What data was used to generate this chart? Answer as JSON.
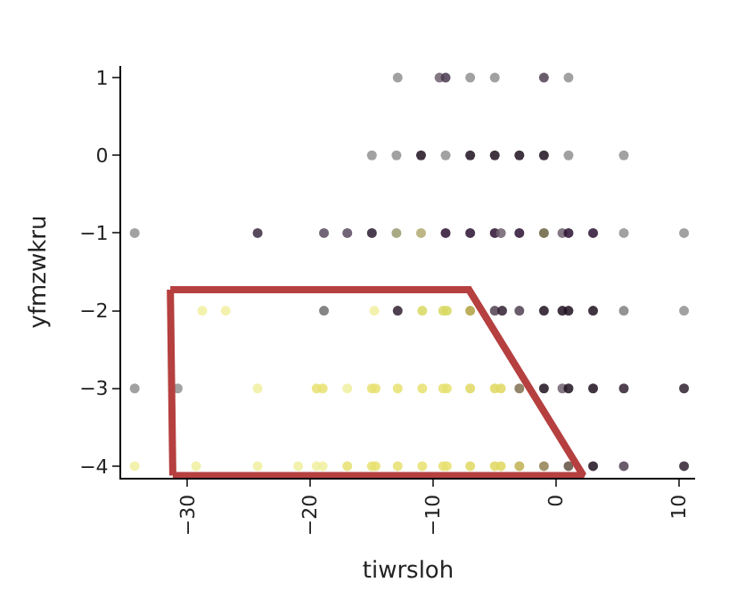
{
  "chart_data": {
    "type": "scatter",
    "xlabel": "tiwrsloh",
    "ylabel": "yfmzwkru",
    "xlim": [
      -35.4,
      11.3
    ],
    "ylim": [
      -4.15,
      1.15
    ],
    "xticks": [
      -30,
      -20,
      -10,
      0,
      10
    ],
    "yticks": [
      -4,
      -3,
      -2,
      -1,
      0,
      1
    ],
    "marker": "circle",
    "series": [
      {
        "x": [
          -12.9,
          -9.5,
          -9,
          -7,
          -5,
          -1,
          1,
          -15,
          -13,
          -11,
          -9,
          -7,
          -5,
          -3,
          -1,
          1,
          5.5,
          -34.3,
          -24.3,
          -18.9,
          -17,
          -15,
          -13,
          -11,
          -9,
          -7,
          -5,
          -4.5,
          -3,
          -1,
          0.5,
          1,
          3,
          5.5,
          10.4,
          -28.8,
          -26.9,
          -18.9,
          -14.8,
          -12.9,
          -10.9,
          -9.2,
          -8.9,
          -7,
          -5,
          -4.4,
          -3,
          -1,
          0.5,
          1,
          3,
          5.5,
          10.4,
          -34.3,
          -30.8,
          -24.3,
          -19.5,
          -19,
          -17,
          -15,
          -14.7,
          -12.9,
          -10.9,
          -9.2,
          -8.9,
          -7,
          -5,
          -4.5,
          -3,
          -1,
          0.5,
          1,
          3,
          5.5,
          10.4,
          -34.3,
          -29.3,
          -24.3,
          -21,
          -19.5,
          -19,
          -17,
          -15,
          -14.7,
          -12.9,
          -10.9,
          -9.2,
          -8.9,
          -7,
          -5,
          -4.5,
          -3,
          -1,
          1,
          3,
          5.5,
          10.4
        ],
        "values": [
          1,
          1,
          1,
          1,
          1,
          1,
          1,
          0,
          0,
          0,
          0,
          0,
          0,
          0,
          0,
          0,
          0,
          -1,
          -1,
          -1,
          -1,
          -1,
          -1,
          -1,
          -1,
          -1,
          -1,
          -1,
          -1,
          -1,
          -1,
          -1,
          -1,
          -1,
          -1,
          -2,
          -2,
          -2,
          -2,
          -2,
          -2,
          -2,
          -2,
          -2,
          -2,
          -2,
          -2,
          -2,
          -2,
          -2,
          -2,
          -2,
          -2,
          -3,
          -3,
          -3,
          -3,
          -3,
          -3,
          -3,
          -3,
          -3,
          -3,
          -3,
          -3,
          -3,
          -3,
          -3,
          -3,
          -3,
          -3,
          -3,
          -3,
          -3,
          -3,
          -4,
          -4,
          -4,
          -4,
          -4,
          -4,
          -4,
          -4,
          -4,
          -4,
          -4,
          -4,
          -4,
          -4,
          -4,
          -4,
          -4,
          -4,
          -4,
          -4,
          -4,
          -4
        ],
        "colors": [
          "#909090",
          "#706070",
          "#4a3a50",
          "#909090",
          "#909090",
          "#504050",
          "#909090",
          "#909090",
          "#909090",
          "#201020",
          "#909090",
          "#201020",
          "#201020",
          "#201020",
          "#201020",
          "#909090",
          "#909090",
          "#909090",
          "#3a2a40",
          "#5a4a60",
          "#5a4a60",
          "#2a1a30",
          "#9a9a70",
          "#b0a870",
          "#2a1030",
          "#2a1030",
          "#2a1030",
          "#706070",
          "#2a1030",
          "#6a6040",
          "#706070",
          "#2a1030",
          "#2a1030",
          "#909090",
          "#909090",
          "#f0f0a0",
          "#f0f0a0",
          "#707070",
          "#f0f0a0",
          "#302030",
          "#d8d860",
          "#d8d860",
          "#d8d860",
          "#b0a040",
          "#504050",
          "#302030",
          "#504050",
          "#201020",
          "#201020",
          "#201020",
          "#201020",
          "#808080",
          "#909090",
          "#909090",
          "#909090",
          "#f0f0a0",
          "#e8e070",
          "#e8e070",
          "#f0f0a0",
          "#e8e070",
          "#e8e070",
          "#e8e070",
          "#e8e070",
          "#e8e070",
          "#e8e070",
          "#e0d860",
          "#e0d860",
          "#e0d860",
          "#807050",
          "#201020",
          "#706070",
          "#201020",
          "#201020",
          "#302030",
          "#302030",
          "#f0f0a0",
          "#f0f0a0",
          "#f0f0a0",
          "#f0f0a0",
          "#f0f0a0",
          "#f0f0a0",
          "#e8e070",
          "#e8e070",
          "#e8e070",
          "#e8e070",
          "#e8e070",
          "#e8e070",
          "#e8e070",
          "#e0d860",
          "#e0d860",
          "#e0d860",
          "#c0b050",
          "#908050",
          "#605040",
          "#201020",
          "#504050",
          "#302030"
        ]
      },
      {
        "type": "line",
        "color": "#b5403f",
        "line_style": "solid",
        "marker": "none",
        "x": [
          -31.4,
          -7.1,
          2.2,
          -31.2
        ],
        "values": [
          -1.73,
          -1.73,
          -4.12,
          -4.12
        ]
      },
      {
        "type": "line",
        "color": "#b5403f",
        "line_style": "solid",
        "marker": "none",
        "x": [
          -31.2,
          -31.4
        ],
        "values": [
          -4.12,
          -1.73
        ]
      }
    ]
  }
}
